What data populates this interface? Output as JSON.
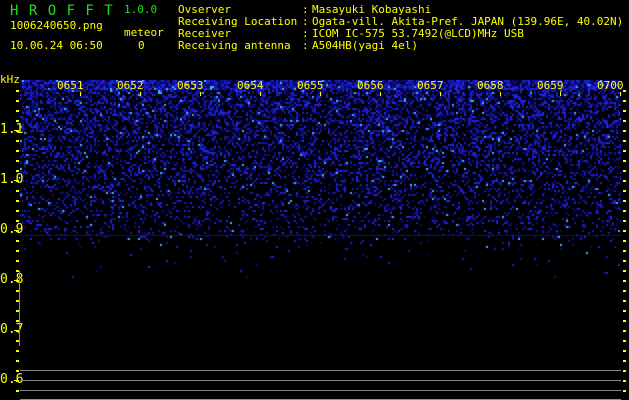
{
  "header": {
    "app_name": "H R O F F T",
    "version": "1.0.0",
    "filename": "1006240650.png",
    "datetime": "10.06.24 06:50",
    "meteor_label": "meteor",
    "meteor_count": "0"
  },
  "info": [
    {
      "label": "Ovserver",
      "value": "Masayuki Kobayashi"
    },
    {
      "label": "Receiving Location",
      "value": "Ogata-vill. Akita-Pref. JAPAN (139.96E, 40.02N)"
    },
    {
      "label": "Receiver",
      "value": "ICOM IC-575 53.7492(@LCD)MHz USB"
    },
    {
      "label": "Receiving antenna",
      "value": "A504HB(yagi 4el)"
    }
  ],
  "spectrogram": {
    "y_unit": "kHz",
    "y_labels": [
      "1.1",
      "1.0",
      "0.9",
      "0.8",
      "0.7",
      "0.6"
    ],
    "time_labels": [
      "0651",
      "0652",
      "0653",
      "0654",
      "0655",
      "0656",
      "0657",
      "0658",
      "0659",
      "0700"
    ],
    "colors": {
      "text": "#ffff00",
      "title": "#22dd22",
      "signal": "#2030ff",
      "grid": "#888888",
      "baseline": "#00cccc"
    }
  }
}
